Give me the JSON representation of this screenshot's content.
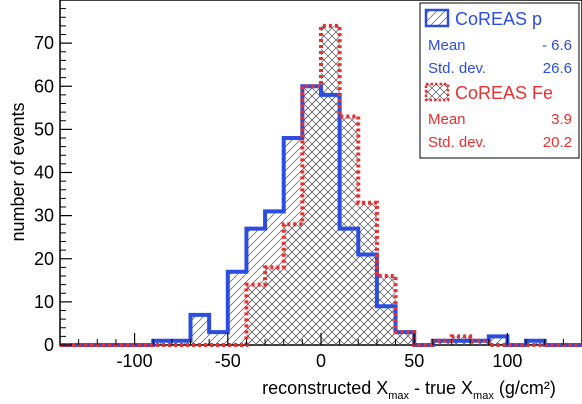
{
  "chart_data": {
    "type": "bar",
    "xlim": [
      -140,
      140
    ],
    "ylim": [
      0,
      80
    ],
    "bin_width": 10,
    "x_ticks": [
      -100,
      -50,
      0,
      50,
      100
    ],
    "x_tick_labels": [
      "-100",
      "-50",
      "0",
      "50",
      "100"
    ],
    "y_ticks": [
      0,
      10,
      20,
      30,
      40,
      50,
      60,
      70
    ],
    "y_tick_labels": [
      "0",
      "10",
      "20",
      "30",
      "40",
      "50",
      "60",
      "70"
    ],
    "ylabel": "number of events",
    "xlabel": {
      "prefix": "reconstructed X",
      "sub1": "max",
      "middle": " - true X",
      "sub2": "max",
      "suffix": "  (g/cm²)"
    },
    "legend_position": "top-right",
    "series": [
      {
        "name": "CoREAS p",
        "color": "#2b4ee0",
        "line": "solid",
        "hatch": "diagonal-single",
        "bin_edges": [
          -90,
          -80,
          -70,
          -60,
          -50,
          -40,
          -30,
          -20,
          -10,
          0,
          10,
          20,
          30,
          40,
          50,
          60,
          70,
          80,
          90,
          100,
          110,
          120,
          130
        ],
        "values": [
          1,
          1,
          7,
          3,
          17,
          27,
          31,
          48,
          60,
          58,
          27,
          21,
          9,
          3,
          0,
          1,
          1,
          1,
          2,
          0,
          1,
          0
        ],
        "stats": [
          {
            "label": "Mean",
            "value": "- 6.6"
          },
          {
            "label": "Std. dev.",
            "value": "26.6"
          }
        ]
      },
      {
        "name": "CoREAS Fe",
        "color": "#e83030",
        "line": "dotted",
        "hatch": "cross",
        "bin_edges": [
          -90,
          -80,
          -70,
          -60,
          -50,
          -40,
          -30,
          -20,
          -10,
          0,
          10,
          20,
          30,
          40,
          50,
          60,
          70,
          80,
          90,
          100,
          110,
          120,
          130
        ],
        "values": [
          0,
          0,
          0,
          0,
          0,
          14,
          18,
          28,
          60,
          74,
          53,
          33,
          16,
          3,
          0,
          1,
          2,
          1,
          0,
          0,
          0,
          0
        ],
        "stats": [
          {
            "label": "Mean",
            "value": "3.9"
          },
          {
            "label": "Std. dev.",
            "value": "20.2"
          }
        ]
      }
    ]
  }
}
